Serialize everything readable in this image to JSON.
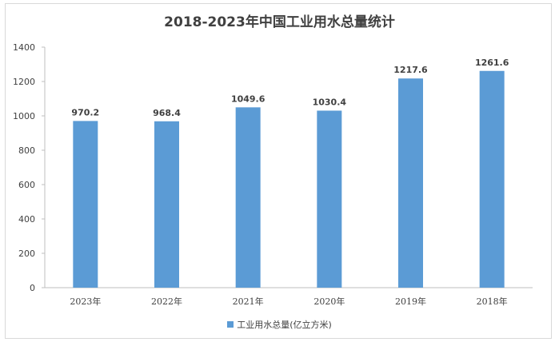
{
  "chart_data": {
    "type": "bar",
    "title": "2018-2023年中国工业用水总量统计",
    "categories": [
      "2023年",
      "2022年",
      "2021年",
      "2020年",
      "2019年",
      "2018年"
    ],
    "series": [
      {
        "name": "工业用水总量(亿立方米)",
        "values": [
          970.2,
          968.4,
          1049.6,
          1030.4,
          1217.6,
          1261.6
        ]
      }
    ],
    "value_labels": [
      "970.2",
      "968.4",
      "1049.6",
      "1030.4",
      "1217.6",
      "1261.6"
    ],
    "yticks": [
      "0",
      "200",
      "400",
      "600",
      "800",
      "1000",
      "1200",
      "1400"
    ],
    "ylim": [
      0,
      1400
    ],
    "legend_position": "bottom",
    "grid": false,
    "bar_color": "#5b9bd5"
  }
}
